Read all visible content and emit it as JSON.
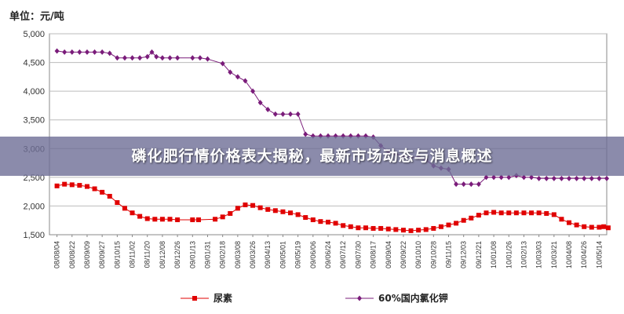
{
  "unit_label": "单位：元/吨",
  "banner_title": "磷化肥行情价格表大揭秘，最新市场动态与消息概述",
  "colors": {
    "urea": "#e00000",
    "potash": "#7a1c7a",
    "grid": "#bbbbbb",
    "banner": "#6e6e96"
  },
  "chart_data": {
    "type": "line",
    "ylim": [
      1500,
      5000
    ],
    "yticks": [
      "1,500",
      "2,000",
      "2,500",
      "3,000",
      "3,500",
      "4,000",
      "4,500",
      "5,000"
    ],
    "ytick_values": [
      1500,
      2000,
      2500,
      3000,
      3500,
      4000,
      4500,
      5000
    ],
    "x": [
      "08/08/04",
      "08/08/22",
      "08/09/09",
      "08/09/27",
      "08/10/15",
      "08/11/02",
      "08/11/20",
      "08/12/08",
      "08/12/26",
      "09/01/13",
      "09/01/31",
      "09/02/18",
      "09/03/08",
      "09/03/26",
      "09/04/13",
      "09/05/01",
      "09/05/19",
      "09/06/06",
      "09/06/24",
      "09/07/12",
      "09/07/30",
      "09/08/17",
      "09/09/04",
      "09/09/22",
      "09/10/10",
      "09/10/28",
      "09/11/15",
      "09/12/03",
      "09/12/21",
      "10/01/08",
      "10/01/26",
      "10/02/13",
      "10/03/03",
      "10/03/21",
      "10/04/08",
      "10/04/26",
      "10/05/14"
    ],
    "grid": true,
    "legend_position": "bottom",
    "series": [
      {
        "name": "尿素",
        "marker": "square",
        "points": [
          [
            0,
            2350
          ],
          [
            0.5,
            2380
          ],
          [
            1,
            2370
          ],
          [
            1.5,
            2360
          ],
          [
            2,
            2340
          ],
          [
            2.5,
            2300
          ],
          [
            3,
            2240
          ],
          [
            3.5,
            2170
          ],
          [
            4,
            2060
          ],
          [
            4.5,
            1960
          ],
          [
            5,
            1880
          ],
          [
            5.5,
            1820
          ],
          [
            6,
            1780
          ],
          [
            6.5,
            1770
          ],
          [
            7,
            1770
          ],
          [
            7.5,
            1770
          ],
          [
            8,
            1760
          ],
          [
            9,
            1760
          ],
          [
            9.4,
            1760
          ],
          [
            10.5,
            1770
          ],
          [
            11,
            1810
          ],
          [
            11.5,
            1870
          ],
          [
            12,
            1960
          ],
          [
            12.5,
            2020
          ],
          [
            13,
            2010
          ],
          [
            13.5,
            1970
          ],
          [
            14,
            1940
          ],
          [
            14.5,
            1920
          ],
          [
            15,
            1900
          ],
          [
            15.5,
            1880
          ],
          [
            16,
            1850
          ],
          [
            16.5,
            1800
          ],
          [
            17,
            1760
          ],
          [
            17.5,
            1730
          ],
          [
            18,
            1720
          ],
          [
            18.5,
            1700
          ],
          [
            19,
            1660
          ],
          [
            19.5,
            1640
          ],
          [
            20,
            1620
          ],
          [
            20.5,
            1620
          ],
          [
            21,
            1610
          ],
          [
            21.5,
            1610
          ],
          [
            22,
            1600
          ],
          [
            22.5,
            1590
          ],
          [
            23,
            1580
          ],
          [
            23.5,
            1570
          ],
          [
            24,
            1580
          ],
          [
            24.5,
            1590
          ],
          [
            25,
            1610
          ],
          [
            25.5,
            1640
          ],
          [
            26,
            1670
          ],
          [
            26.5,
            1700
          ],
          [
            27,
            1750
          ],
          [
            27.5,
            1790
          ],
          [
            28,
            1840
          ],
          [
            28.5,
            1880
          ],
          [
            29,
            1890
          ],
          [
            29.5,
            1880
          ],
          [
            30,
            1880
          ],
          [
            30.5,
            1880
          ],
          [
            31,
            1880
          ],
          [
            31.5,
            1880
          ],
          [
            32,
            1880
          ],
          [
            32.5,
            1870
          ],
          [
            33,
            1850
          ],
          [
            33.5,
            1770
          ],
          [
            34,
            1710
          ],
          [
            34.5,
            1670
          ],
          [
            35,
            1640
          ],
          [
            35.5,
            1630
          ],
          [
            36,
            1630
          ],
          [
            36.3,
            1640
          ],
          [
            36.6,
            1620
          ]
        ]
      },
      {
        "name": "60%国内氯化钾",
        "marker": "diamond",
        "points": [
          [
            0,
            4700
          ],
          [
            0.5,
            4680
          ],
          [
            1,
            4680
          ],
          [
            1.5,
            4680
          ],
          [
            2,
            4680
          ],
          [
            2.5,
            4680
          ],
          [
            3,
            4680
          ],
          [
            3.5,
            4660
          ],
          [
            4,
            4580
          ],
          [
            4.5,
            4580
          ],
          [
            5,
            4580
          ],
          [
            5.5,
            4580
          ],
          [
            6,
            4600
          ],
          [
            6.3,
            4680
          ],
          [
            6.6,
            4600
          ],
          [
            7,
            4580
          ],
          [
            7.5,
            4580
          ],
          [
            8,
            4580
          ],
          [
            9,
            4580
          ],
          [
            9.5,
            4580
          ],
          [
            10,
            4560
          ],
          [
            11,
            4480
          ],
          [
            11.5,
            4330
          ],
          [
            12,
            4250
          ],
          [
            12.5,
            4180
          ],
          [
            13,
            4000
          ],
          [
            13.5,
            3800
          ],
          [
            14,
            3680
          ],
          [
            14.5,
            3600
          ],
          [
            15,
            3600
          ],
          [
            15.5,
            3600
          ],
          [
            16,
            3600
          ],
          [
            16.5,
            3250
          ],
          [
            17,
            3220
          ],
          [
            17.5,
            3220
          ],
          [
            18,
            3220
          ],
          [
            18.5,
            3220
          ],
          [
            19,
            3220
          ],
          [
            19.5,
            3220
          ],
          [
            20,
            3220
          ],
          [
            20.5,
            3220
          ],
          [
            21,
            3200
          ],
          [
            21.5,
            3050
          ],
          [
            22,
            2950
          ],
          [
            22.5,
            2900
          ],
          [
            23,
            2870
          ],
          [
            23.5,
            2850
          ],
          [
            24,
            2850
          ],
          [
            24.5,
            2800
          ],
          [
            25,
            2700
          ],
          [
            25.5,
            2660
          ],
          [
            26,
            2640
          ],
          [
            26.5,
            2380
          ],
          [
            27,
            2380
          ],
          [
            27.5,
            2380
          ],
          [
            28,
            2380
          ],
          [
            28.5,
            2500
          ],
          [
            29,
            2500
          ],
          [
            29.5,
            2500
          ],
          [
            30,
            2500
          ],
          [
            30.5,
            2530
          ],
          [
            31,
            2500
          ],
          [
            31.5,
            2500
          ],
          [
            32,
            2480
          ],
          [
            32.5,
            2480
          ],
          [
            33,
            2480
          ],
          [
            33.5,
            2480
          ],
          [
            34,
            2480
          ],
          [
            34.5,
            2480
          ],
          [
            35,
            2480
          ],
          [
            35.5,
            2480
          ],
          [
            36,
            2480
          ],
          [
            36.5,
            2480
          ]
        ]
      }
    ]
  }
}
